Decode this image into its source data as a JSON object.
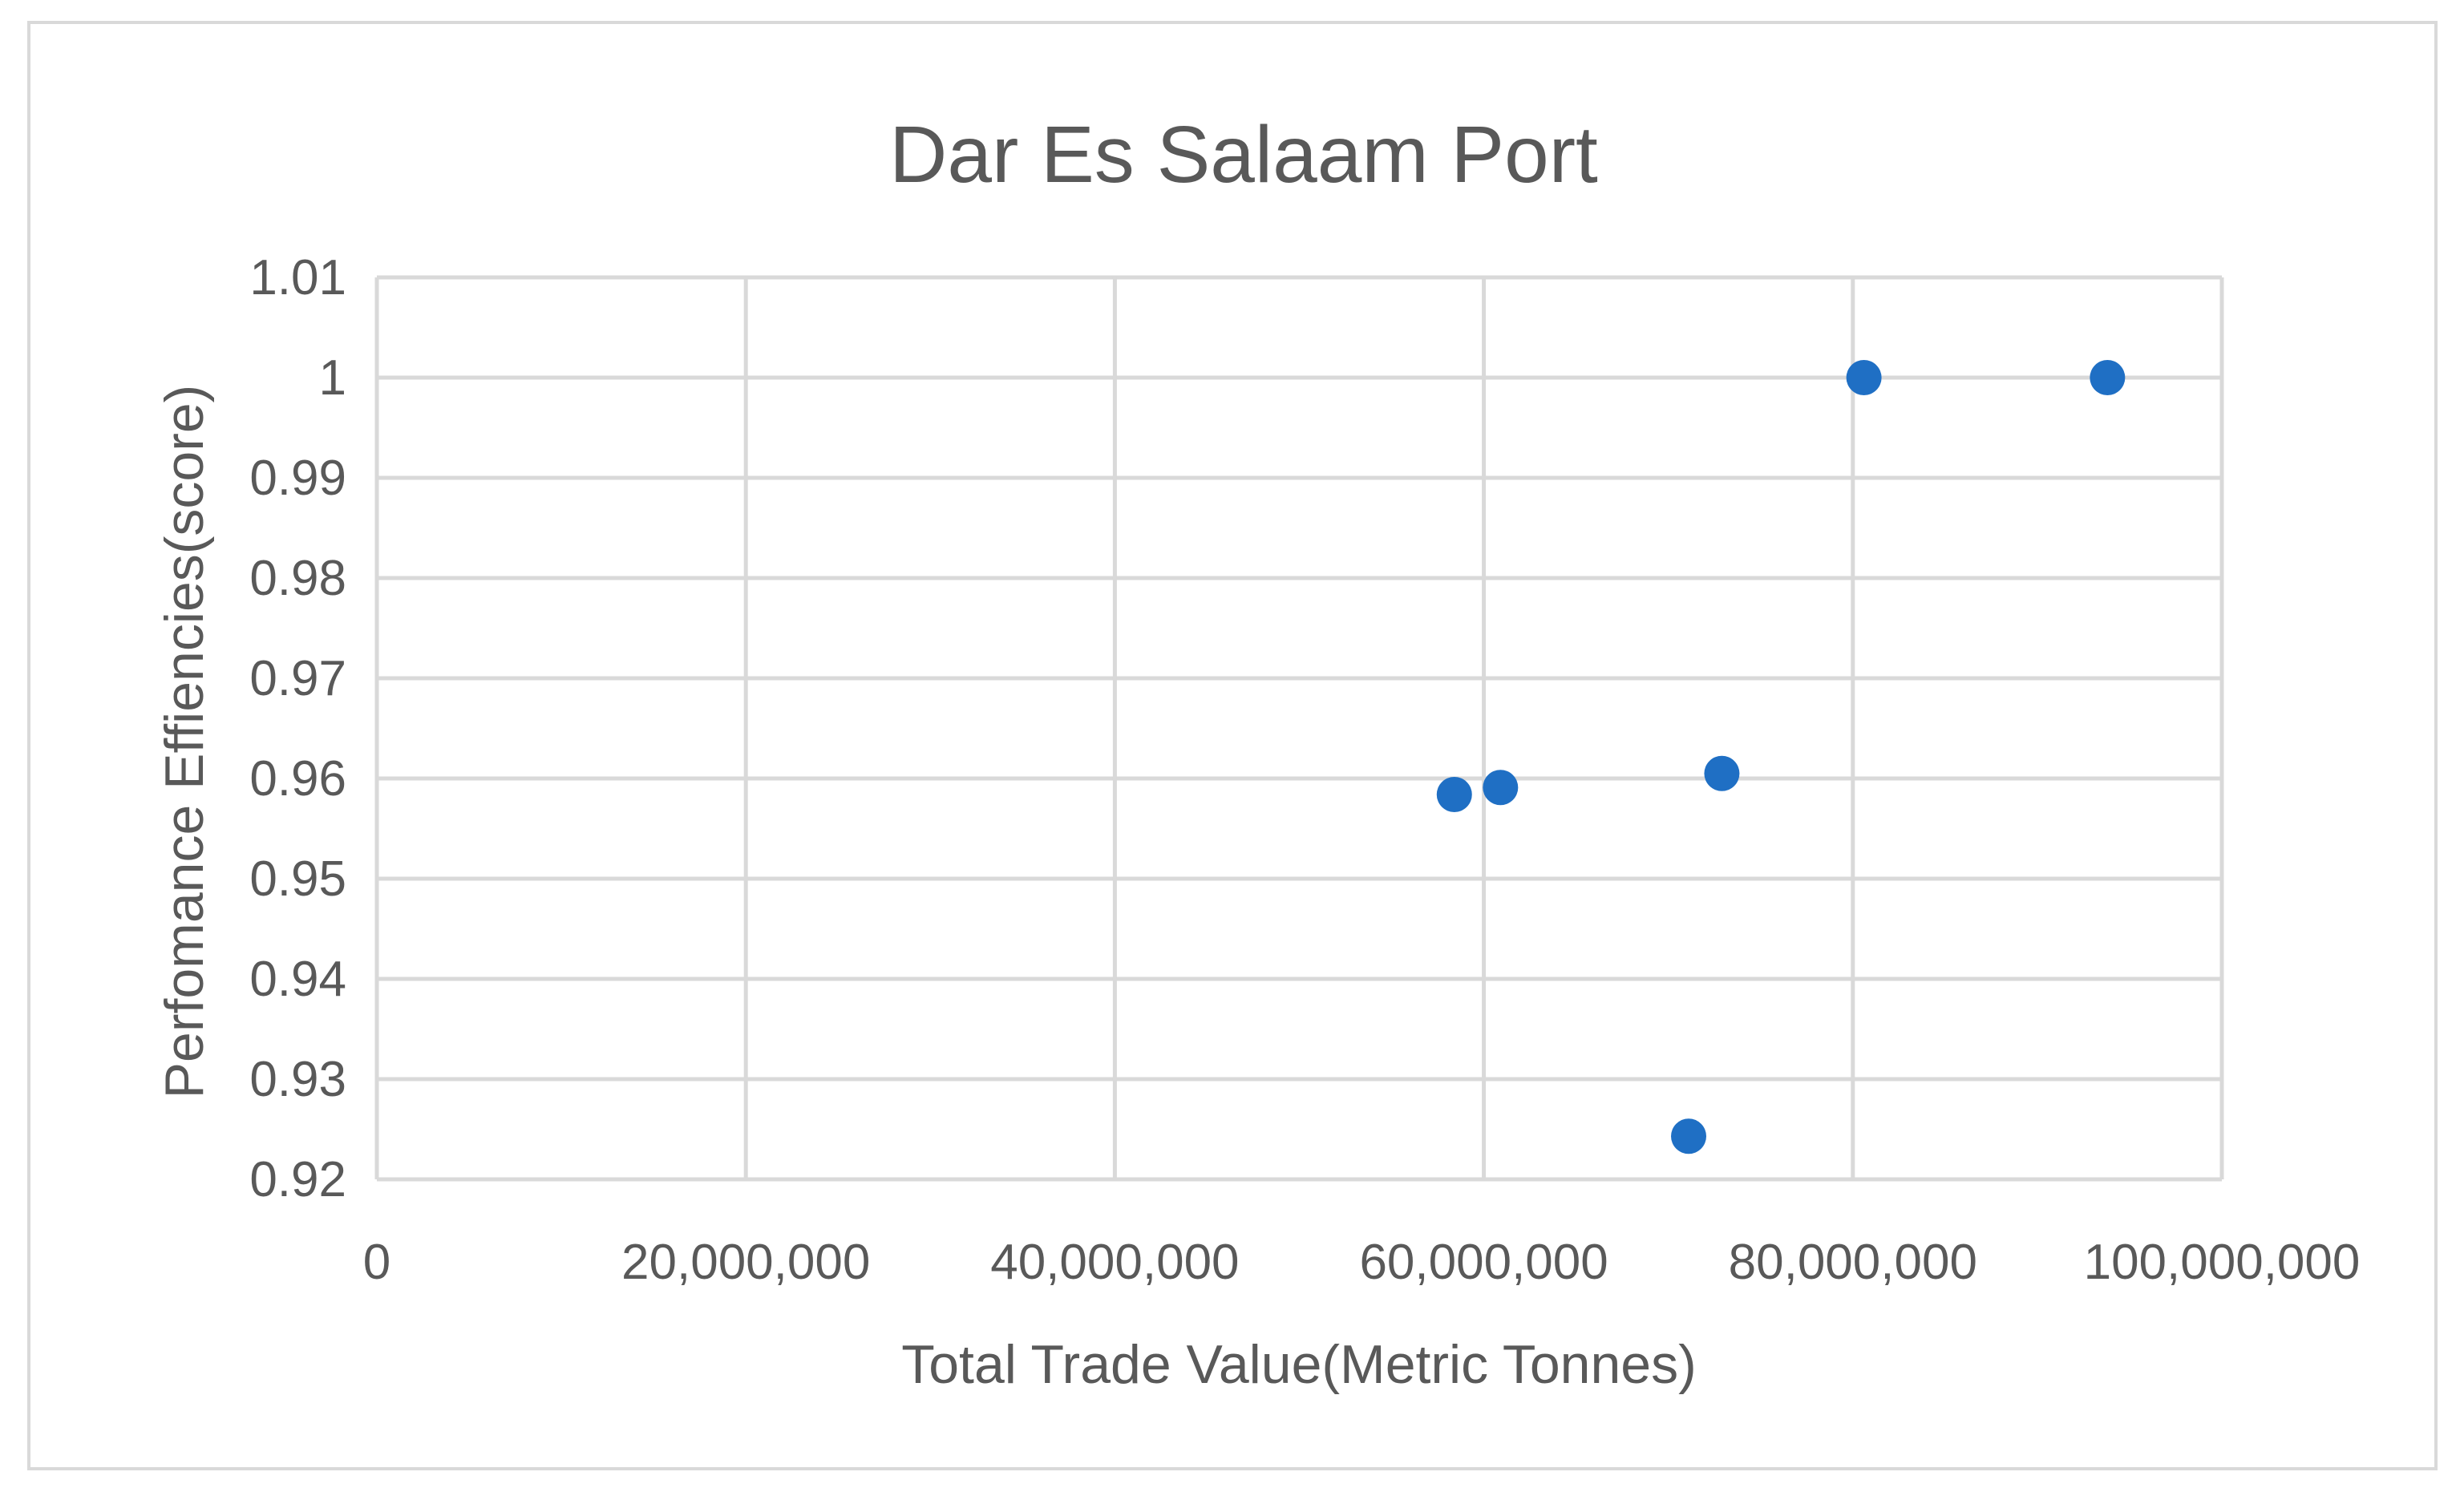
{
  "chart_data": {
    "type": "scatter",
    "title": "Dar Es Salaam Port",
    "xlabel": "Total Trade Value(Metric Tonnes)",
    "ylabel": "Perfomance Effiencies(score)",
    "xlim": [
      0,
      100000000
    ],
    "ylim": [
      0.92,
      1.01
    ],
    "x_ticks": [
      0,
      20000000,
      40000000,
      60000000,
      80000000,
      100000000
    ],
    "x_tick_labels": [
      "0",
      "20,000,000",
      "40,000,000",
      "60,000,000",
      "80,000,000",
      "100,000,000"
    ],
    "y_ticks": [
      0.92,
      0.93,
      0.94,
      0.95,
      0.96,
      0.97,
      0.98,
      0.99,
      1.0,
      1.01
    ],
    "y_tick_labels": [
      "0.92",
      "0.93",
      "0.94",
      "0.95",
      "0.96",
      "0.97",
      "0.98",
      "0.99",
      "1",
      "1.01"
    ],
    "grid": true,
    "legend": "none",
    "marker_color": "#1f6fc4",
    "series": [
      {
        "points": [
          {
            "x": 58400000,
            "y": 0.9584
          },
          {
            "x": 60900000,
            "y": 0.9591
          },
          {
            "x": 72900000,
            "y": 0.9605
          },
          {
            "x": 71100000,
            "y": 0.9243
          },
          {
            "x": 80600000,
            "y": 1.0
          },
          {
            "x": 93800000,
            "y": 1.0
          }
        ]
      }
    ]
  }
}
